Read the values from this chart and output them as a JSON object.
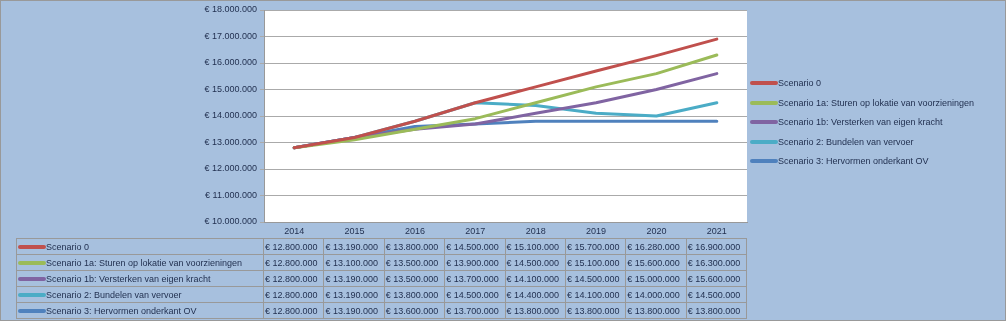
{
  "chart_data": {
    "type": "line",
    "categories": [
      "2014",
      "2015",
      "2016",
      "2017",
      "2018",
      "2019",
      "2020",
      "2021"
    ],
    "ylim": [
      10000000,
      18000000
    ],
    "yticks": [
      {
        "value": 10000000,
        "label": "€ 10.000.000"
      },
      {
        "value": 11000000,
        "label": "€ 11.000.000"
      },
      {
        "value": 12000000,
        "label": "€ 12.000.000"
      },
      {
        "value": 13000000,
        "label": "€ 13.000.000"
      },
      {
        "value": 14000000,
        "label": "€ 14.000.000"
      },
      {
        "value": 15000000,
        "label": "€ 15.000.000"
      },
      {
        "value": 16000000,
        "label": "€ 16.000.000"
      },
      {
        "value": 17000000,
        "label": "€ 17.000.000"
      },
      {
        "value": 18000000,
        "label": "€ 18.000.000"
      }
    ],
    "grid": "y",
    "legend": "right",
    "marker": "none",
    "line_style": "solid",
    "series": [
      {
        "name": "Scenario 0",
        "color": "#c0504d",
        "values": [
          12800000,
          13190000,
          13800000,
          14500000,
          15100000,
          15700000,
          16280000,
          16900000
        ],
        "value_labels": [
          "€ 12.800.000",
          "€ 13.190.000",
          "€ 13.800.000",
          "€ 14.500.000",
          "€ 15.100.000",
          "€ 15.700.000",
          "€ 16.280.000",
          "€ 16.900.000"
        ]
      },
      {
        "name": "Scenario 1a: Sturen op lokatie van voorzieningen",
        "color": "#9bbb59",
        "values": [
          12800000,
          13100000,
          13500000,
          13900000,
          14500000,
          15100000,
          15600000,
          16300000
        ],
        "value_labels": [
          "€ 12.800.000",
          "€ 13.100.000",
          "€ 13.500.000",
          "€ 13.900.000",
          "€ 14.500.000",
          "€ 15.100.000",
          "€ 15.600.000",
          "€ 16.300.000"
        ]
      },
      {
        "name": "Scenario 1b: Versterken van eigen kracht",
        "color": "#8064a2",
        "values": [
          12800000,
          13190000,
          13500000,
          13700000,
          14100000,
          14500000,
          15000000,
          15600000
        ],
        "value_labels": [
          "€ 12.800.000",
          "€ 13.190.000",
          "€ 13.500.000",
          "€ 13.700.000",
          "€ 14.100.000",
          "€ 14.500.000",
          "€ 15.000.000",
          "€ 15.600.000"
        ]
      },
      {
        "name": "Scenario 2: Bundelen van vervoer",
        "color": "#4bacc6",
        "values": [
          12800000,
          13190000,
          13800000,
          14500000,
          14400000,
          14100000,
          14000000,
          14500000
        ],
        "value_labels": [
          "€ 12.800.000",
          "€ 13.190.000",
          "€ 13.800.000",
          "€ 14.500.000",
          "€ 14.400.000",
          "€ 14.100.000",
          "€ 14.000.000",
          "€ 14.500.000"
        ]
      },
      {
        "name": "Scenario 3: Hervormen onderkant OV",
        "color": "#4f81bd",
        "values": [
          12800000,
          13190000,
          13600000,
          13700000,
          13800000,
          13800000,
          13800000,
          13800000
        ],
        "value_labels": [
          "€ 12.800.000",
          "€ 13.190.000",
          "€ 13.600.000",
          "€ 13.700.000",
          "€ 13.800.000",
          "€ 13.800.000",
          "€ 13.800.000",
          "€ 13.800.000"
        ]
      }
    ]
  }
}
